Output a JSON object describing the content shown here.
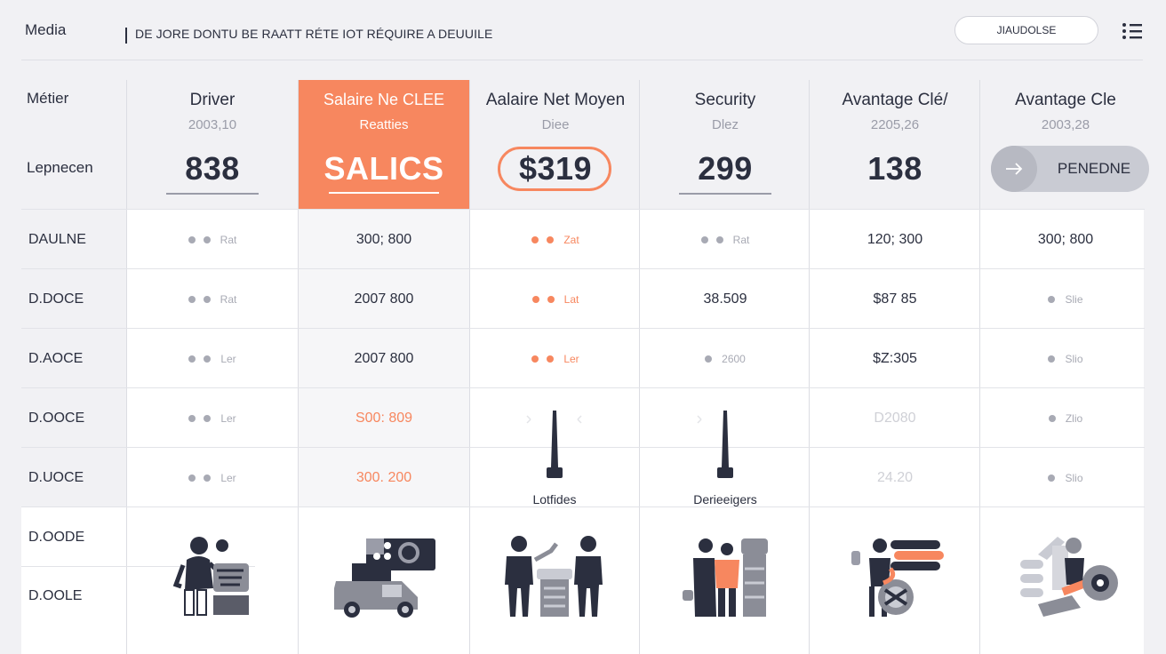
{
  "header": {
    "title": "Media",
    "subtitle": "DE JORE DONTU BE RAATT RÉTE IOT RÉQUIRE A DEUUILE",
    "button_label": "JIAUDOLSE"
  },
  "row_labels_top": {
    "metier": "Métier",
    "lepnecen": "Lepnecen"
  },
  "columns": [
    {
      "title": "Driver",
      "sub": "2003,10",
      "value": "838",
      "style": "underline"
    },
    {
      "title": "Salaire Ne CLEE",
      "sub": "Reatties",
      "value": "SALICS",
      "style": "highlight"
    },
    {
      "title": "Aalaire Net Moyen",
      "sub": "Diee",
      "value": "$319",
      "style": "pill"
    },
    {
      "title": "Security",
      "sub": "Dlez",
      "value": "299",
      "style": "underline"
    },
    {
      "title": "Avantage Clé/",
      "sub": "2205,26",
      "value": "138",
      "style": "plain"
    },
    {
      "title": "Avantage Cle",
      "sub": "2003,28",
      "value": "PENEDNE",
      "style": "button"
    }
  ],
  "rows": [
    {
      "label": "DAULNE",
      "cells": [
        {
          "kind": "dots",
          "text": "Rat"
        },
        {
          "kind": "text",
          "text": "300; 800"
        },
        {
          "kind": "odots",
          "text": "Zat"
        },
        {
          "kind": "dots",
          "text": "Rat"
        },
        {
          "kind": "text",
          "text": "120; 300"
        },
        {
          "kind": "text",
          "text": "300; 800"
        }
      ]
    },
    {
      "label": "D.DOCE",
      "cells": [
        {
          "kind": "dots",
          "text": "Rat"
        },
        {
          "kind": "text",
          "text": "2007 800"
        },
        {
          "kind": "odots",
          "text": "Lat"
        },
        {
          "kind": "text",
          "text": "38.509"
        },
        {
          "kind": "text",
          "text": "$87 85"
        },
        {
          "kind": "sdot",
          "text": "Slie"
        }
      ]
    },
    {
      "label": "D.AOCE",
      "cells": [
        {
          "kind": "dots",
          "text": "Ler"
        },
        {
          "kind": "text",
          "text": "2007 800"
        },
        {
          "kind": "odots",
          "text": "Ler"
        },
        {
          "kind": "sdot",
          "text": "2600"
        },
        {
          "kind": "text",
          "text": "$Z:305"
        },
        {
          "kind": "sdot",
          "text": "Slio"
        }
      ]
    },
    {
      "label": "D.OOCE",
      "cells": [
        {
          "kind": "dots",
          "text": "Ler"
        },
        {
          "kind": "orange",
          "text": "S00: 809"
        },
        {
          "kind": "blank",
          "text": ""
        },
        {
          "kind": "blank",
          "text": ""
        },
        {
          "kind": "faint",
          "text": "D2080"
        },
        {
          "kind": "sdot",
          "text": "Zlio"
        }
      ]
    },
    {
      "label": "D.UOCE",
      "cells": [
        {
          "kind": "dots",
          "text": "Ler"
        },
        {
          "kind": "orange",
          "text": "300. 200"
        },
        {
          "kind": "blank",
          "text": ""
        },
        {
          "kind": "blank",
          "text": ""
        },
        {
          "kind": "faint",
          "text": "24.20"
        },
        {
          "kind": "sdot",
          "text": "Slio"
        }
      ]
    },
    {
      "label": "D.OODE",
      "cells": []
    },
    {
      "label": "D.OOLE",
      "cells": []
    }
  ],
  "tower_labels": [
    "Lotfides",
    "Derieeigers"
  ],
  "icons": {
    "menu": "list-menu-icon",
    "arrow": "arrow-right-icon",
    "tower": "tower-icon"
  },
  "colors": {
    "accent": "#f7875f",
    "text": "#2b2f3f",
    "muted": "#9a9ca8",
    "background": "#f1f1f4"
  }
}
